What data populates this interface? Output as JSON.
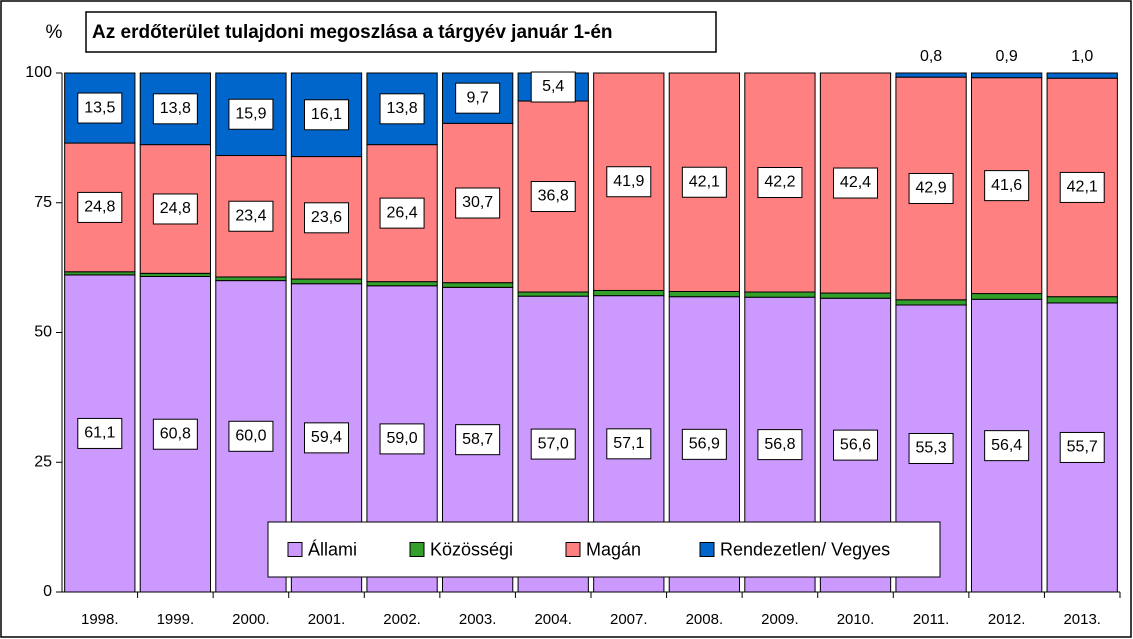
{
  "chart_data": {
    "type": "stacked_bar",
    "title": "Az erdőterület tulajdoni megoszlása a tárgyév január 1-én",
    "ylabel": "%",
    "categories": [
      "1998.",
      "1999.",
      "2000.",
      "2001.",
      "2002.",
      "2003.",
      "2004.",
      "2007.",
      "2008.",
      "2009.",
      "2010.",
      "2011.",
      "2012.",
      "2013."
    ],
    "series": [
      {
        "name": "Állami",
        "color": "#cc99ff",
        "values": [
          61.1,
          60.8,
          60.0,
          59.4,
          59.0,
          58.7,
          57.0,
          57.1,
          56.9,
          56.8,
          56.6,
          55.3,
          56.4,
          55.7
        ],
        "value_labels": [
          "61,1",
          "60,8",
          "60,0",
          "59,4",
          "59,0",
          "58,7",
          "57,0",
          "57,1",
          "56,9",
          "56,8",
          "56,6",
          "55,3",
          "56,4",
          "55,7"
        ]
      },
      {
        "name": "Közösségi",
        "color": "#33a02c",
        "values": [
          0.6,
          0.6,
          0.7,
          0.9,
          0.8,
          0.9,
          0.8,
          1.0,
          1.0,
          1.0,
          1.0,
          1.0,
          1.1,
          1.2
        ]
      },
      {
        "name": "Magán",
        "color": "#ff8080",
        "values": [
          24.8,
          24.8,
          23.4,
          23.6,
          26.4,
          30.7,
          36.8,
          41.9,
          42.1,
          42.2,
          42.4,
          42.9,
          41.6,
          42.1
        ],
        "value_labels": [
          "24,8",
          "24,8",
          "23,4",
          "23,6",
          "26,4",
          "30,7",
          "36,8",
          "41,9",
          "42,1",
          "42,2",
          "42,4",
          "42,9",
          "41,6",
          "42,1"
        ]
      },
      {
        "name": "Rendezetlen/ Vegyes",
        "color": "#0066cc",
        "values": [
          13.5,
          13.8,
          15.9,
          16.1,
          13.8,
          9.7,
          5.4,
          null,
          null,
          null,
          null,
          0.8,
          0.9,
          1.0
        ],
        "value_labels": [
          "13,5",
          "13,8",
          "15,9",
          "16,1",
          "13,8",
          "9,7",
          "5,4",
          null,
          null,
          null,
          null,
          "0,8",
          "0,9",
          "1,0"
        ]
      }
    ],
    "ylim": [
      0,
      100
    ],
    "yticks": [
      0,
      25,
      50,
      75,
      100
    ],
    "legend": "bottom"
  }
}
